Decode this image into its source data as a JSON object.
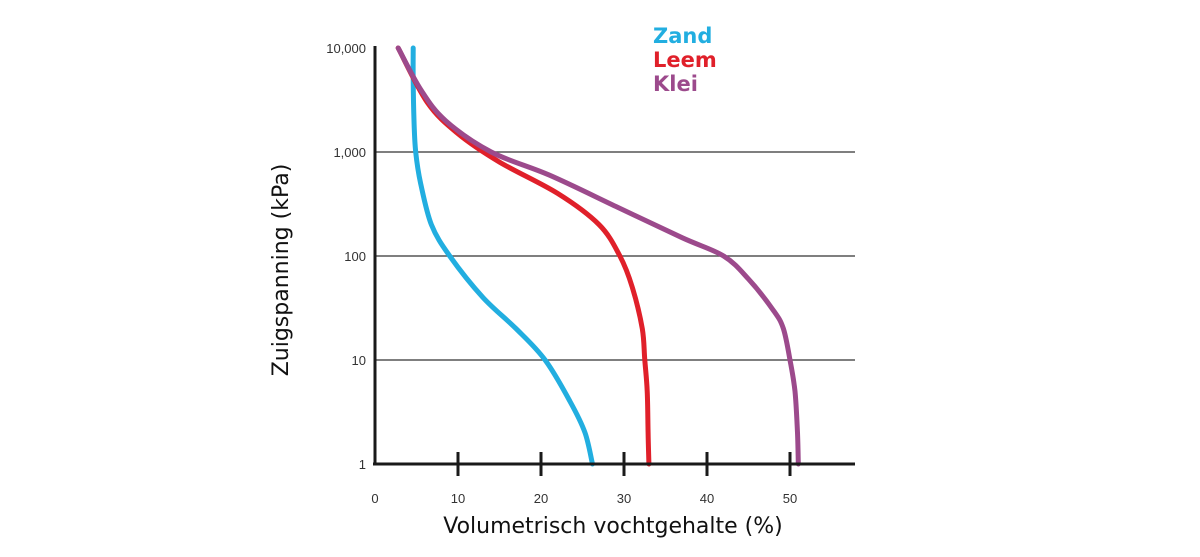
{
  "chart_data": {
    "type": "line",
    "title": "",
    "xlabel": "Volumetrisch vochtgehalte (%)",
    "ylabel": "Zuigspanning (kPa)",
    "xlim": [
      0,
      59
    ],
    "ylim": [
      1,
      10000
    ],
    "y_scale": "log",
    "grid": "horizontal",
    "legend_position": "top-center",
    "x_ticks": [
      {
        "value": 0,
        "label": "0"
      },
      {
        "value": 10,
        "label": "10"
      },
      {
        "value": 20,
        "label": "20"
      },
      {
        "value": 30,
        "label": "30"
      },
      {
        "value": 40,
        "label": "40"
      },
      {
        "value": 50,
        "label": "50"
      }
    ],
    "y_ticks": [
      {
        "value": 1,
        "label": "1"
      },
      {
        "value": 10,
        "label": "10"
      },
      {
        "value": 100,
        "label": "100"
      },
      {
        "value": 1000,
        "label": "1,000"
      },
      {
        "value": 10000,
        "label": "10,000"
      }
    ],
    "series": [
      {
        "name": "Zand",
        "color": "#22aee0",
        "x": [
          26.2,
          25.3,
          23.5,
          20.5,
          17.0,
          13.0,
          9.0,
          6.8,
          5.5,
          4.9,
          4.7,
          4.6,
          4.6
        ],
        "y": [
          1,
          2,
          4,
          10,
          20,
          40,
          100,
          200,
          500,
          1000,
          2000,
          5000,
          10000
        ]
      },
      {
        "name": "Leem",
        "color": "#e0202a",
        "x": [
          33.0,
          32.9,
          32.8,
          32.5,
          32.2,
          31.0,
          29.5,
          27.0,
          22.0,
          15.0,
          10.0,
          6.3,
          2.8
        ],
        "y": [
          1,
          2,
          5,
          10,
          20,
          50,
          100,
          200,
          400,
          800,
          1500,
          3000,
          10000
        ]
      },
      {
        "name": "Klei",
        "color": "#9c4a8c",
        "x": [
          51.0,
          50.9,
          50.6,
          50.0,
          49.2,
          48.0,
          45.0,
          42.0,
          37.0,
          29.0,
          21.0,
          14.0,
          8.5,
          5.5,
          2.8
        ],
        "y": [
          1,
          2,
          5,
          10,
          20,
          30,
          60,
          100,
          150,
          300,
          600,
          1000,
          2000,
          4000,
          10000
        ]
      }
    ]
  }
}
